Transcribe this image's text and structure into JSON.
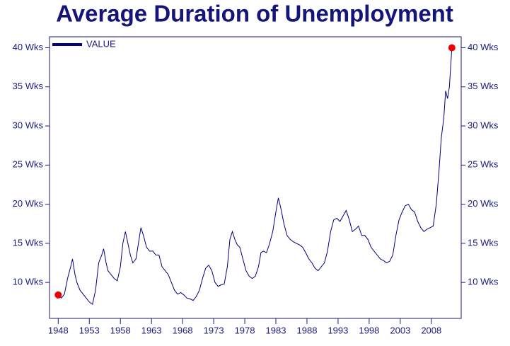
{
  "chart_data": {
    "type": "line",
    "title": "Average Duration of Unemployment",
    "x": [
      1948.0,
      1948.5,
      1949.0,
      1949.5,
      1950.0,
      1950.3,
      1950.7,
      1951.0,
      1951.5,
      1952.0,
      1952.5,
      1953.0,
      1953.5,
      1954.0,
      1954.5,
      1955.0,
      1955.3,
      1955.7,
      1956.0,
      1956.5,
      1957.0,
      1957.5,
      1958.0,
      1958.4,
      1958.8,
      1959.2,
      1959.6,
      1960.0,
      1960.5,
      1961.0,
      1961.3,
      1961.7,
      1962.2,
      1962.7,
      1963.2,
      1963.7,
      1964.2,
      1964.7,
      1965.2,
      1965.7,
      1966.2,
      1966.7,
      1967.2,
      1967.7,
      1968.2,
      1968.7,
      1969.2,
      1969.7,
      1970.2,
      1970.7,
      1971.2,
      1971.7,
      1972.2,
      1972.7,
      1973.2,
      1973.7,
      1974.2,
      1974.7,
      1975.2,
      1975.6,
      1976.0,
      1976.4,
      1976.8,
      1977.2,
      1977.7,
      1978.2,
      1978.7,
      1979.2,
      1979.7,
      1980.2,
      1980.6,
      1981.0,
      1981.5,
      1982.0,
      1982.5,
      1983.0,
      1983.4,
      1983.8,
      1984.3,
      1984.8,
      1985.3,
      1985.8,
      1986.3,
      1986.8,
      1987.3,
      1987.8,
      1988.3,
      1988.8,
      1989.3,
      1989.8,
      1990.3,
      1990.8,
      1991.3,
      1991.8,
      1992.3,
      1992.8,
      1993.3,
      1993.8,
      1994.3,
      1994.8,
      1995.3,
      1995.8,
      1996.3,
      1996.8,
      1997.3,
      1997.8,
      1998.3,
      1998.8,
      1999.3,
      1999.8,
      2000.3,
      2000.8,
      2001.3,
      2001.8,
      2002.3,
      2002.8,
      2003.3,
      2003.8,
      2004.3,
      2004.8,
      2005.3,
      2005.8,
      2006.3,
      2006.8,
      2007.3,
      2007.8,
      2008.3,
      2008.8,
      2009.2,
      2009.6,
      2010.0,
      2010.3,
      2010.6,
      2010.9,
      2011.3
    ],
    "series": [
      {
        "name": "VALUE",
        "color": "#000080",
        "values": [
          8.4,
          8.0,
          8.5,
          10.5,
          12.0,
          13.0,
          11.0,
          10.0,
          9.0,
          8.5,
          8.0,
          7.5,
          7.2,
          9.0,
          12.5,
          13.5,
          14.3,
          12.5,
          11.5,
          11.0,
          10.5,
          10.2,
          12.0,
          15.0,
          16.5,
          15.0,
          13.5,
          12.5,
          13.0,
          15.5,
          17.0,
          16.0,
          14.5,
          14.0,
          14.0,
          13.5,
          13.5,
          12.0,
          11.5,
          11.0,
          10.0,
          9.0,
          8.5,
          8.7,
          8.4,
          8.0,
          7.9,
          7.7,
          8.2,
          9.0,
          10.5,
          11.8,
          12.2,
          11.5,
          10.0,
          9.5,
          9.7,
          9.8,
          12.0,
          15.5,
          16.5,
          15.5,
          14.8,
          14.5,
          13.0,
          11.5,
          10.8,
          10.5,
          10.8,
          12.0,
          13.8,
          14.0,
          13.8,
          15.0,
          16.5,
          19.0,
          20.8,
          19.5,
          17.5,
          16.0,
          15.5,
          15.2,
          15.0,
          14.8,
          14.5,
          13.8,
          13.0,
          12.5,
          11.8,
          11.5,
          12.0,
          12.5,
          14.0,
          16.5,
          18.0,
          18.2,
          17.8,
          18.5,
          19.2,
          18.0,
          16.5,
          16.8,
          17.2,
          16.0,
          16.0,
          15.5,
          14.5,
          14.0,
          13.5,
          13.0,
          12.8,
          12.5,
          12.7,
          13.5,
          16.0,
          18.0,
          19.0,
          19.8,
          20.0,
          19.3,
          19.0,
          17.8,
          17.0,
          16.5,
          16.8,
          17.0,
          17.2,
          20.0,
          24.0,
          28.5,
          31.0,
          34.5,
          33.5,
          35.0,
          40.0
        ]
      }
    ],
    "xlim": [
      1946.6,
      2012.8
    ],
    "xticks": [
      1948,
      1953,
      1958,
      1963,
      1968,
      1973,
      1978,
      1983,
      1988,
      1993,
      1998,
      2003,
      2008
    ],
    "ylim": [
      5.4,
      41.4
    ],
    "yticks": [
      {
        "value": 10,
        "label": "10 Wks"
      },
      {
        "value": 15,
        "label": "15 Wks"
      },
      {
        "value": 20,
        "label": "20 Wks"
      },
      {
        "value": 25,
        "label": "25 Wks"
      },
      {
        "value": 30,
        "label": "30 Wks"
      },
      {
        "value": 35,
        "label": "35 Wks"
      },
      {
        "value": 40,
        "label": "40 Wks"
      }
    ],
    "endpoint_markers": true,
    "marker_color": "#ee0000",
    "legend": "top-left"
  }
}
